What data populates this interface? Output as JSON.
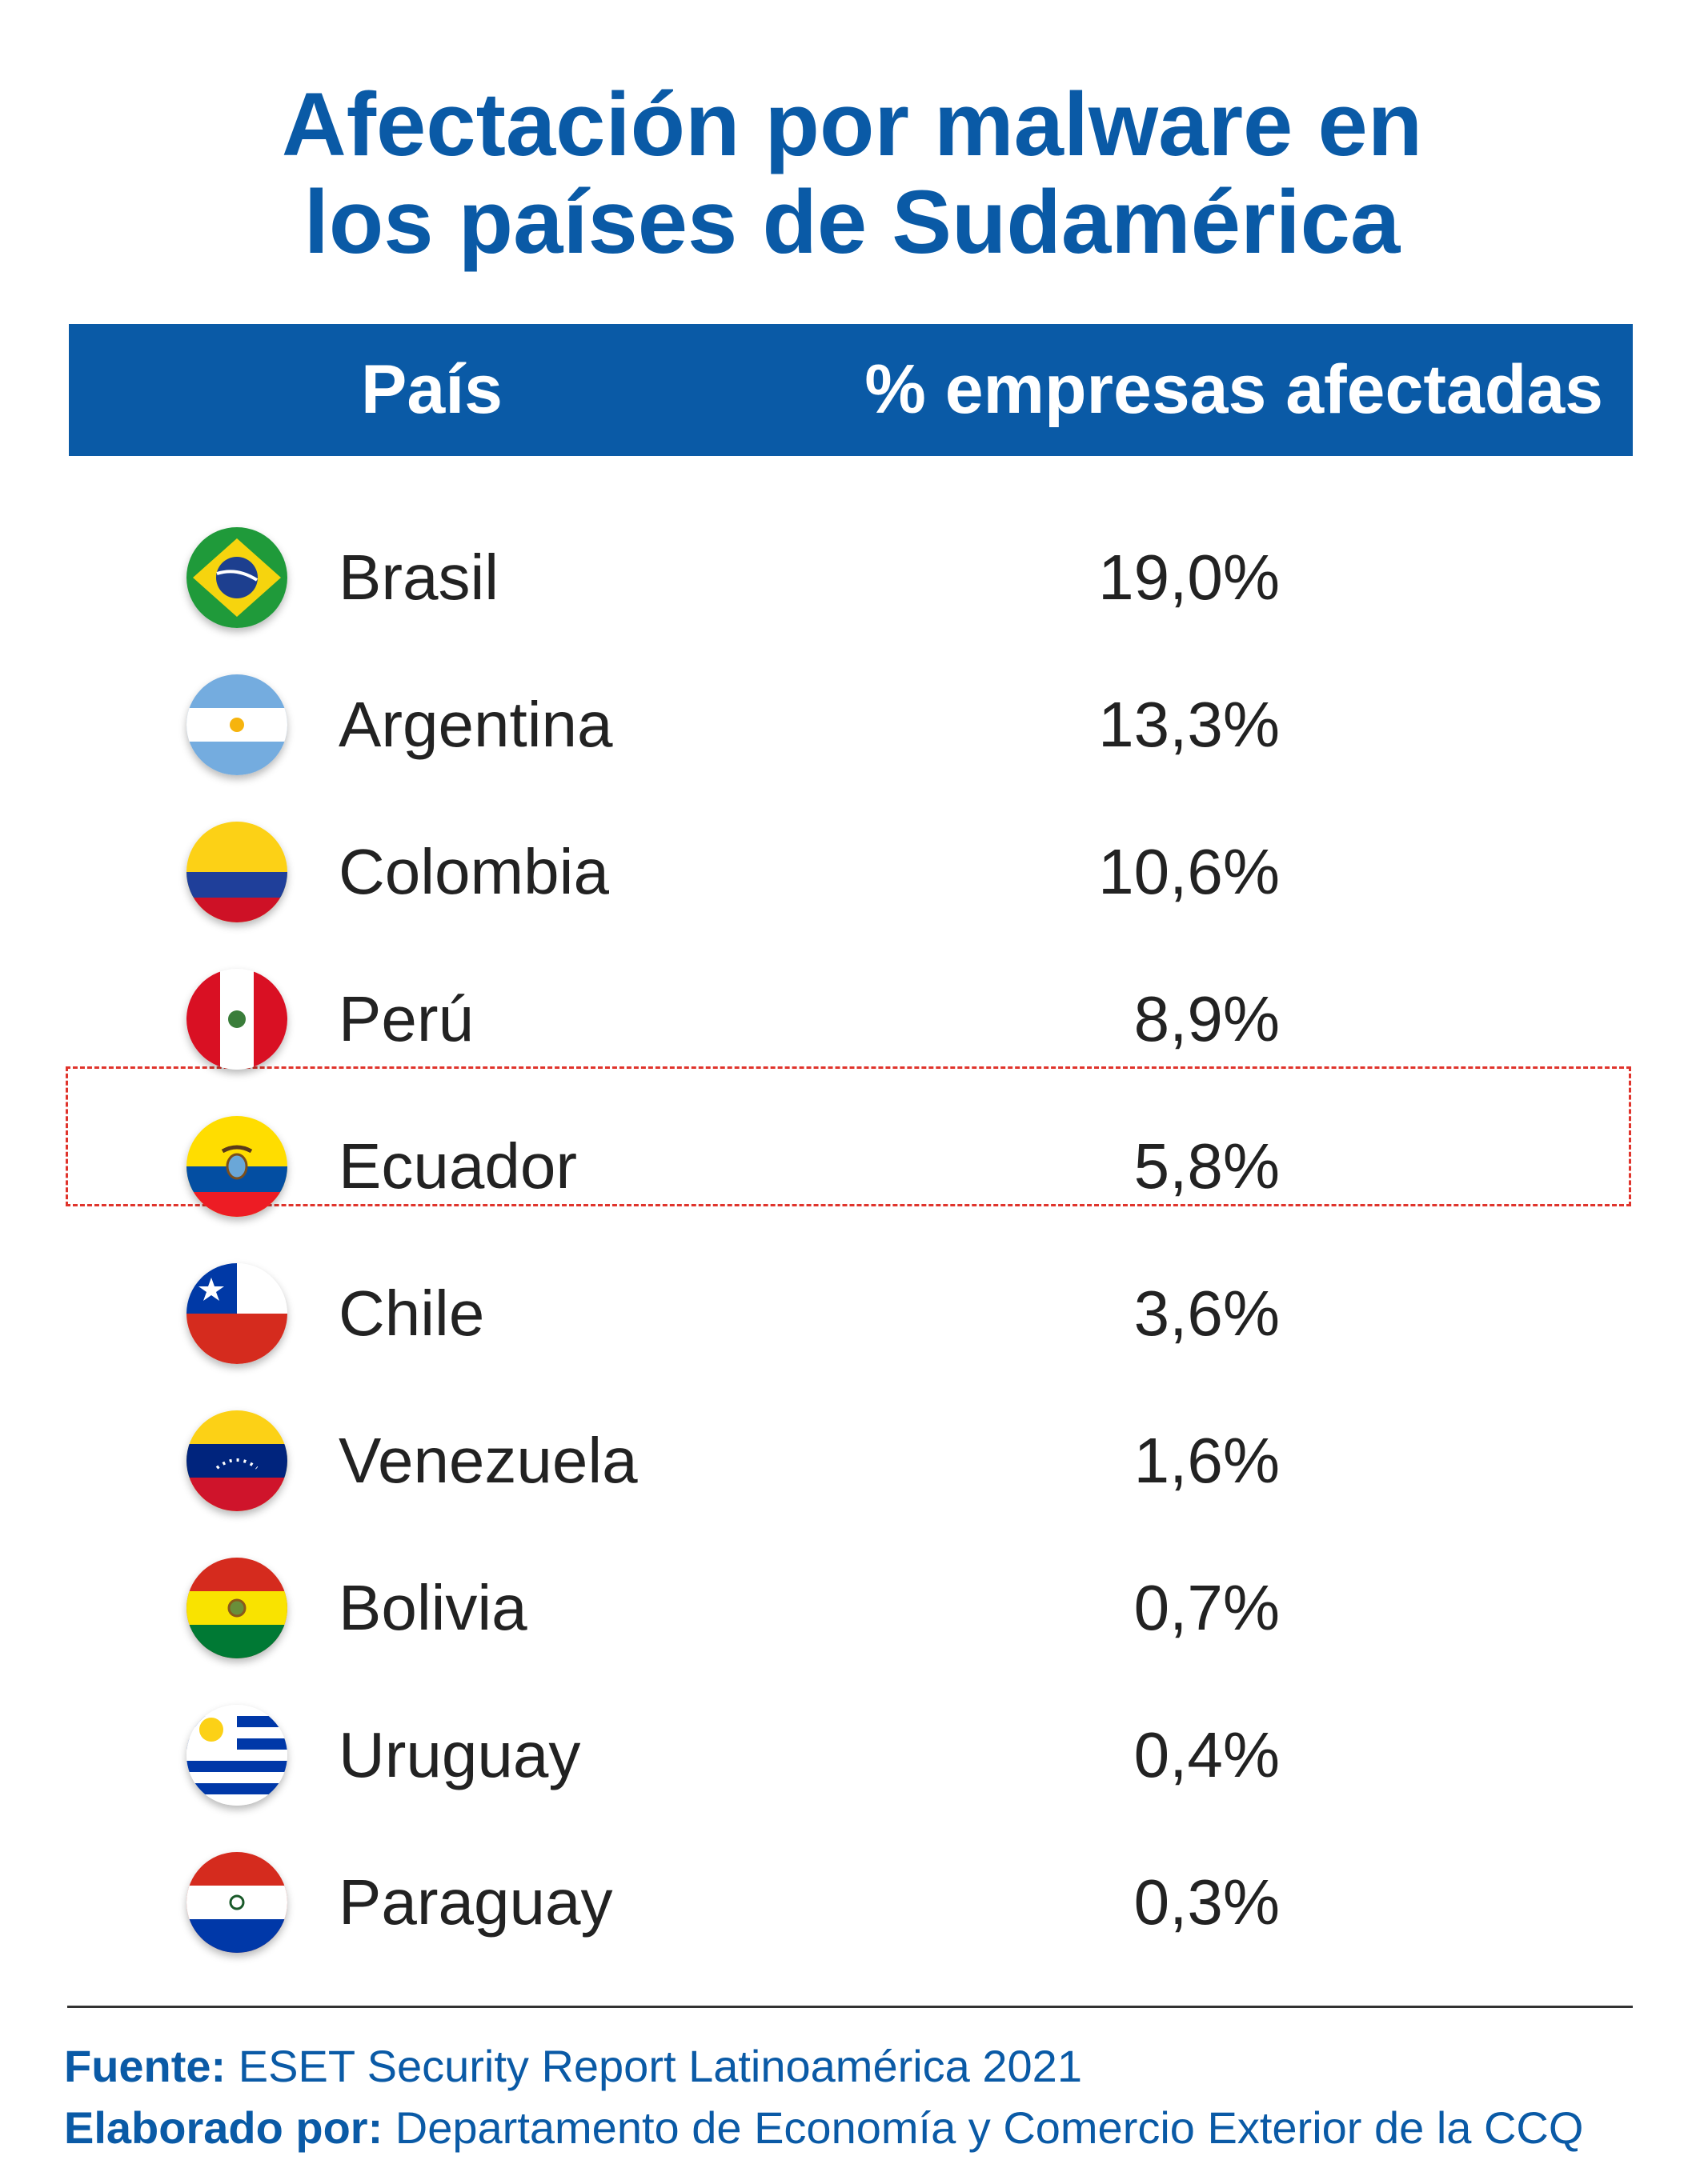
{
  "title_line1": "Afectación por malware en",
  "title_line2": "los países de Sudamérica",
  "header": {
    "country": "País",
    "value": "% empresas afectadas"
  },
  "highlighted_country": "Ecuador",
  "rows": [
    {
      "country": "Brasil",
      "value": "19,0%",
      "flag": "brazil-flag-icon"
    },
    {
      "country": "Argentina",
      "value": "13,3%",
      "flag": "argentina-flag-icon"
    },
    {
      "country": "Colombia",
      "value": "10,6%",
      "flag": "colombia-flag-icon"
    },
    {
      "country": "Perú",
      "value": "8,9%",
      "flag": "peru-flag-icon"
    },
    {
      "country": "Ecuador",
      "value": "5,8%",
      "flag": "ecuador-flag-icon"
    },
    {
      "country": "Chile",
      "value": "3,6%",
      "flag": "chile-flag-icon"
    },
    {
      "country": "Venezuela",
      "value": "1,6%",
      "flag": "venezuela-flag-icon"
    },
    {
      "country": "Bolivia",
      "value": "0,7%",
      "flag": "bolivia-flag-icon"
    },
    {
      "country": "Uruguay",
      "value": "0,4%",
      "flag": "uruguay-flag-icon"
    },
    {
      "country": "Paraguay",
      "value": "0,3%",
      "flag": "paraguay-flag-icon"
    }
  ],
  "footer": {
    "source_label": "Fuente:",
    "source_text": "ESET Security Report Latinoamérica 2021",
    "author_label": "Elaborado por:",
    "author_text": "Departamento de Economía y Comercio Exterior de la CCQ"
  },
  "colors": {
    "brand_blue": "#0a5aa6",
    "highlight_red": "#e0342c",
    "text": "#222222"
  },
  "chart_data": {
    "type": "table",
    "title": "Afectación por malware en los países de Sudamérica",
    "columns": [
      "País",
      "% empresas afectadas"
    ],
    "categories": [
      "Brasil",
      "Argentina",
      "Colombia",
      "Perú",
      "Ecuador",
      "Chile",
      "Venezuela",
      "Bolivia",
      "Uruguay",
      "Paraguay"
    ],
    "values": [
      19.0,
      13.3,
      10.6,
      8.9,
      5.8,
      3.6,
      1.6,
      0.7,
      0.4,
      0.3
    ],
    "value_labels": [
      "19,0%",
      "13,3%",
      "10,6%",
      "8,9%",
      "5,8%",
      "3,6%",
      "1,6%",
      "0,7%",
      "0,4%",
      "0,3%"
    ]
  }
}
